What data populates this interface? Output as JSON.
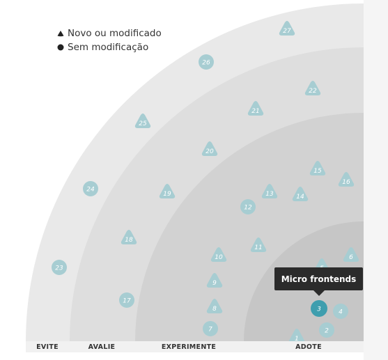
{
  "legend": {
    "new_label": "Novo ou modificado",
    "unchanged_label": "Sem modificação"
  },
  "rings": [
    {
      "label": "EVITE",
      "color": "#e9e9e9"
    },
    {
      "label": "AVALIE",
      "color": "#dedede"
    },
    {
      "label": "EXPERIMENTE",
      "color": "#d2d2d2"
    },
    {
      "label": "ADOTE",
      "color": "#c6c6c6"
    }
  ],
  "colors": {
    "blip": "#a7cdd2",
    "blip_selected": "#3e9eae",
    "blip_text": "#ffffff"
  },
  "tooltip": {
    "text": "Micro frontends"
  },
  "blips": [
    {
      "id": "1",
      "shape": "triangle"
    },
    {
      "id": "2",
      "shape": "circle"
    },
    {
      "id": "3",
      "shape": "circle",
      "selected": true
    },
    {
      "id": "4",
      "shape": "circle"
    },
    {
      "id": "5",
      "shape": "triangle"
    },
    {
      "id": "6",
      "shape": "triangle"
    },
    {
      "id": "7",
      "shape": "circle"
    },
    {
      "id": "8",
      "shape": "triangle"
    },
    {
      "id": "9",
      "shape": "triangle"
    },
    {
      "id": "10",
      "shape": "triangle"
    },
    {
      "id": "11",
      "shape": "triangle"
    },
    {
      "id": "12",
      "shape": "circle"
    },
    {
      "id": "13",
      "shape": "triangle"
    },
    {
      "id": "14",
      "shape": "triangle"
    },
    {
      "id": "15",
      "shape": "triangle"
    },
    {
      "id": "16",
      "shape": "triangle"
    },
    {
      "id": "17",
      "shape": "circle"
    },
    {
      "id": "18",
      "shape": "triangle"
    },
    {
      "id": "19",
      "shape": "triangle"
    },
    {
      "id": "20",
      "shape": "triangle"
    },
    {
      "id": "21",
      "shape": "triangle"
    },
    {
      "id": "22",
      "shape": "triangle"
    },
    {
      "id": "23",
      "shape": "circle"
    },
    {
      "id": "24",
      "shape": "circle"
    },
    {
      "id": "25",
      "shape": "triangle"
    },
    {
      "id": "26",
      "shape": "circle"
    },
    {
      "id": "27",
      "shape": "triangle"
    }
  ]
}
